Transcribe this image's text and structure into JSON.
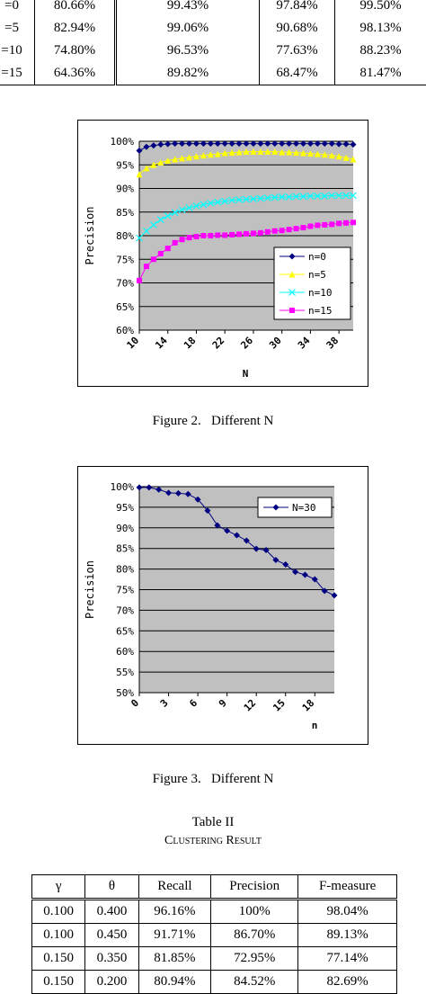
{
  "table1": {
    "rows": [
      [
        "=0",
        "80.66%",
        "99.43%",
        "97.84%",
        "99.50%"
      ],
      [
        "=5",
        "82.94%",
        "99.06%",
        "90.68%",
        "98.13%"
      ],
      [
        "=10",
        "74.80%",
        "96.53%",
        "77.63%",
        "88.23%"
      ],
      [
        "=15",
        "64.36%",
        "89.82%",
        "68.47%",
        "81.47%"
      ]
    ]
  },
  "chart_data": [
    {
      "type": "line",
      "xlabel": "N",
      "ylabel": "Precision",
      "x": [
        10,
        11,
        12,
        13,
        14,
        15,
        16,
        17,
        18,
        19,
        20,
        21,
        22,
        23,
        24,
        25,
        26,
        27,
        28,
        29,
        30,
        31,
        32,
        33,
        34,
        35,
        36,
        37,
        38,
        39,
        40
      ],
      "xlim": [
        10,
        40
      ],
      "xticks": [
        10,
        14,
        18,
        22,
        26,
        30,
        34,
        38
      ],
      "ylim": [
        60,
        100
      ],
      "yticks": [
        {
          "value": 60,
          "label": "60%"
        },
        {
          "value": 65,
          "label": "65%"
        },
        {
          "value": 70,
          "label": "70%"
        },
        {
          "value": 75,
          "label": "75%"
        },
        {
          "value": 80,
          "label": "80%"
        },
        {
          "value": 85,
          "label": "85%"
        },
        {
          "value": 90,
          "label": "90%"
        },
        {
          "value": 95,
          "label": "95%"
        },
        {
          "value": 100,
          "label": "100%"
        }
      ],
      "grid": true,
      "legend": "lower right",
      "series": [
        {
          "name": "n=0",
          "color": "#000080",
          "marker": "diamond",
          "values": [
            98.0,
            98.8,
            99.1,
            99.3,
            99.4,
            99.5,
            99.5,
            99.5,
            99.5,
            99.5,
            99.5,
            99.5,
            99.5,
            99.5,
            99.5,
            99.5,
            99.5,
            99.5,
            99.5,
            99.5,
            99.5,
            99.5,
            99.5,
            99.5,
            99.5,
            99.5,
            99.5,
            99.5,
            99.4,
            99.4,
            99.3
          ]
        },
        {
          "name": "n=5",
          "color": "#ffff00",
          "marker": "triangle",
          "values": [
            93.0,
            94.3,
            95.0,
            95.5,
            95.9,
            96.2,
            96.4,
            96.6,
            96.8,
            97.0,
            97.2,
            97.3,
            97.5,
            97.6,
            97.7,
            97.8,
            97.8,
            97.8,
            97.8,
            97.8,
            97.7,
            97.7,
            97.6,
            97.5,
            97.4,
            97.3,
            97.2,
            97.0,
            96.8,
            96.5,
            96.2
          ]
        },
        {
          "name": "n=10",
          "color": "#00ffff",
          "marker": "cross",
          "values": [
            79.5,
            81.0,
            82.3,
            83.4,
            84.2,
            84.9,
            85.5,
            85.9,
            86.3,
            86.6,
            86.9,
            87.1,
            87.3,
            87.5,
            87.6,
            87.7,
            87.8,
            87.9,
            88.0,
            88.1,
            88.2,
            88.2,
            88.3,
            88.3,
            88.4,
            88.4,
            88.4,
            88.5,
            88.5,
            88.5,
            88.5
          ]
        },
        {
          "name": "n=15",
          "color": "#ff00ff",
          "marker": "square",
          "values": [
            70.5,
            73.5,
            75.0,
            76.2,
            77.3,
            78.5,
            79.2,
            79.6,
            79.8,
            80.0,
            80.0,
            80.1,
            80.1,
            80.2,
            80.3,
            80.4,
            80.5,
            80.6,
            80.8,
            81.0,
            81.1,
            81.3,
            81.5,
            81.7,
            82.0,
            82.2,
            82.3,
            82.4,
            82.6,
            82.7,
            82.8
          ]
        }
      ]
    },
    {
      "type": "line",
      "xlabel": "n",
      "ylabel": "Precision",
      "x": [
        0,
        1,
        2,
        3,
        4,
        5,
        6,
        7,
        8,
        9,
        10,
        11,
        12,
        13,
        14,
        15,
        16,
        17,
        18,
        19,
        20
      ],
      "xlim": [
        0,
        20
      ],
      "xticks": [
        0,
        3,
        6,
        9,
        12,
        15,
        18
      ],
      "ylim": [
        50,
        100
      ],
      "yticks": [
        {
          "value": 50,
          "label": "50%"
        },
        {
          "value": 55,
          "label": "55%"
        },
        {
          "value": 60,
          "label": "60%"
        },
        {
          "value": 65,
          "label": "65%"
        },
        {
          "value": 70,
          "label": "70%"
        },
        {
          "value": 75,
          "label": "75%"
        },
        {
          "value": 80,
          "label": "80%"
        },
        {
          "value": 85,
          "label": "85%"
        },
        {
          "value": 90,
          "label": "90%"
        },
        {
          "value": 95,
          "label": "95%"
        },
        {
          "value": 100,
          "label": "100%"
        }
      ],
      "grid": true,
      "legend": "upper right",
      "series": [
        {
          "name": "N=30",
          "color": "#000080",
          "marker": "diamond",
          "values": [
            99.8,
            99.8,
            99.3,
            98.5,
            98.4,
            98.2,
            96.9,
            94.2,
            90.6,
            89.3,
            88.2,
            86.9,
            84.9,
            84.6,
            82.2,
            81.1,
            79.3,
            78.6,
            77.5,
            74.7,
            73.6
          ]
        }
      ]
    }
  ],
  "captions": [
    "Figure 2.   Different N",
    "Figure 3.   Different N"
  ],
  "table2": {
    "title": "Table II",
    "subtitle": "Clustering Result",
    "header": [
      "γ",
      "θ",
      "Recall",
      "Precision",
      "F-measure"
    ],
    "rows": [
      [
        "0.100",
        "0.400",
        "96.16%",
        "100%",
        "98.04%"
      ],
      [
        "0.100",
        "0.450",
        "91.71%",
        "86.70%",
        "89.13%"
      ],
      [
        "0.150",
        "0.350",
        "81.85%",
        "72.95%",
        "77.14%"
      ],
      [
        "0.150",
        "0.200",
        "80.94%",
        "84.52%",
        "82.69%"
      ]
    ]
  }
}
